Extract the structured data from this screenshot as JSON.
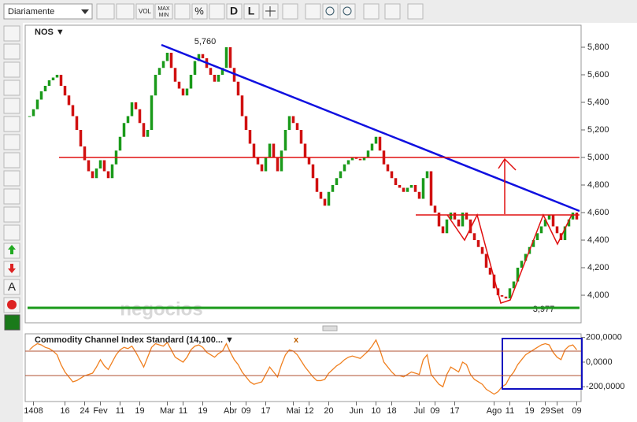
{
  "toolbar": {
    "period": "Diariamente",
    "buttons": [
      "VOL",
      "MAX",
      "MIN",
      "%",
      "D",
      "L"
    ],
    "side_text": "A"
  },
  "chart_data": {
    "type": "candlestick",
    "title": "NOS ▼",
    "watermark": "negocios",
    "up_color": "#1a9a1a",
    "down_color": "#d01010",
    "categories": [
      null,
      "1408",
      null,
      null,
      null,
      null,
      null,
      null,
      null,
      "16",
      null,
      null,
      null,
      null,
      "24",
      null,
      null,
      null,
      "Fev",
      null,
      null,
      null,
      null,
      "11",
      null,
      null,
      null,
      null,
      "19",
      null,
      null,
      null,
      null,
      null,
      null,
      "Mar",
      null,
      null,
      null,
      "11",
      null,
      null,
      null,
      null,
      "19",
      null,
      null,
      null,
      null,
      null,
      null,
      "Abr",
      null,
      null,
      null,
      "09",
      null,
      null,
      null,
      null,
      "17",
      null,
      null,
      null,
      null,
      null,
      null,
      "Mai",
      null,
      null,
      null,
      "12",
      null,
      null,
      null,
      null,
      "20",
      null,
      null,
      null,
      null,
      null,
      null,
      "Jun",
      null,
      null,
      null,
      null,
      "10",
      null,
      null,
      null,
      "18",
      null,
      null,
      null,
      null,
      null,
      null,
      "Jul",
      null,
      null,
      null,
      "09",
      null,
      null,
      null,
      null,
      "17",
      null,
      null,
      null,
      null,
      null,
      null,
      null,
      null,
      null,
      "Ago",
      null,
      null,
      null,
      "11",
      null,
      null,
      null,
      null,
      "19",
      null,
      null,
      null,
      "29",
      null,
      null,
      "Set",
      null,
      null,
      null,
      null,
      "09"
    ],
    "values": [
      5300,
      5350,
      5420,
      5480,
      5520,
      5560,
      5580,
      5600,
      5520,
      5450,
      5380,
      5300,
      5200,
      5080,
      4980,
      4900,
      4850,
      4920,
      4980,
      4900,
      4850,
      4950,
      5050,
      5150,
      5250,
      5300,
      5400,
      5350,
      5250,
      5150,
      5200,
      5450,
      5600,
      5650,
      5700,
      5760,
      5650,
      5550,
      5500,
      5450,
      5500,
      5600,
      5700,
      5750,
      5720,
      5650,
      5600,
      5550,
      5600,
      5650,
      5800,
      5650,
      5550,
      5450,
      5300,
      5200,
      5100,
      5000,
      4950,
      4900,
      5000,
      5100,
      5000,
      4900,
      5050,
      5200,
      5300,
      5250,
      5200,
      5100,
      5000,
      4950,
      4850,
      4750,
      4700,
      4650,
      4750,
      4800,
      4850,
      4900,
      4950,
      4980,
      5000,
      4990,
      4980,
      5000,
      5050,
      5100,
      5150,
      5050,
      4950,
      4900,
      4850,
      4800,
      4780,
      4750,
      4780,
      4800,
      4750,
      4700,
      4850,
      4900,
      4650,
      4600,
      4500,
      4450,
      4550,
      4600,
      4550,
      4500,
      4600,
      4550,
      4450,
      4400,
      4350,
      4300,
      4200,
      4150,
      4050,
      4000,
      3990,
      3977,
      4050,
      4100,
      4200,
      4250,
      4300,
      4350,
      4400,
      4450,
      4500,
      4550,
      4580,
      4500,
      4450,
      4400,
      4500,
      4550,
      4600,
      4550
    ],
    "ylim": [
      3800,
      5960
    ],
    "yticks": [
      {
        "value": 4000,
        "label": "4,000"
      },
      {
        "value": 4200,
        "label": "4,200"
      },
      {
        "value": 4400,
        "label": "4,400"
      },
      {
        "value": 4600,
        "label": "4,600"
      },
      {
        "value": 4800,
        "label": "4,800"
      },
      {
        "value": 5000,
        "label": "5,000"
      },
      {
        "value": 5200,
        "label": "5,200"
      },
      {
        "value": 5400,
        "label": "5,400"
      },
      {
        "value": 5600,
        "label": "5,600"
      },
      {
        "value": 5800,
        "label": "5,800"
      }
    ],
    "annotations": [
      {
        "value": 5760,
        "label": "5,760"
      },
      {
        "value": 3977,
        "label": "3,977"
      }
    ],
    "indicator": {
      "title": "Commodity Channel Index Standard (14,100... ▼",
      "close": "x",
      "color": "#f08020",
      "values": [
        100,
        130,
        150,
        140,
        120,
        110,
        90,
        60,
        -20,
        -80,
        -120,
        -160,
        -150,
        -130,
        -110,
        -100,
        -90,
        -40,
        20,
        -30,
        -60,
        0,
        60,
        100,
        120,
        110,
        130,
        80,
        20,
        -40,
        40,
        120,
        150,
        140,
        130,
        160,
        100,
        40,
        20,
        0,
        40,
        100,
        130,
        140,
        120,
        80,
        60,
        40,
        70,
        90,
        150,
        80,
        20,
        -20,
        -80,
        -120,
        -160,
        -180,
        -170,
        -160,
        -100,
        -40,
        -80,
        -120,
        -20,
        60,
        100,
        90,
        60,
        10,
        -40,
        -80,
        -120,
        -150,
        -150,
        -140,
        -90,
        -60,
        -30,
        -10,
        20,
        40,
        50,
        40,
        30,
        60,
        90,
        130,
        180,
        100,
        0,
        -40,
        -80,
        -110,
        -110,
        -120,
        -100,
        -80,
        -90,
        -100,
        20,
        60,
        -100,
        -140,
        -180,
        -200,
        -100,
        -40,
        -60,
        -80,
        0,
        -20,
        -100,
        -140,
        -160,
        -180,
        -220,
        -240,
        -260,
        -240,
        -200,
        -180,
        -120,
        -80,
        -20,
        20,
        60,
        80,
        100,
        120,
        140,
        150,
        140,
        80,
        40,
        20,
        100,
        130,
        140,
        100
      ],
      "ylim": [
        -320,
        230
      ],
      "yticks": [
        {
          "value": -200,
          "label": "-200,0000"
        },
        {
          "value": 0,
          "label": "0,0000"
        },
        {
          "value": 200,
          "label": "200,0000"
        }
      ]
    }
  }
}
